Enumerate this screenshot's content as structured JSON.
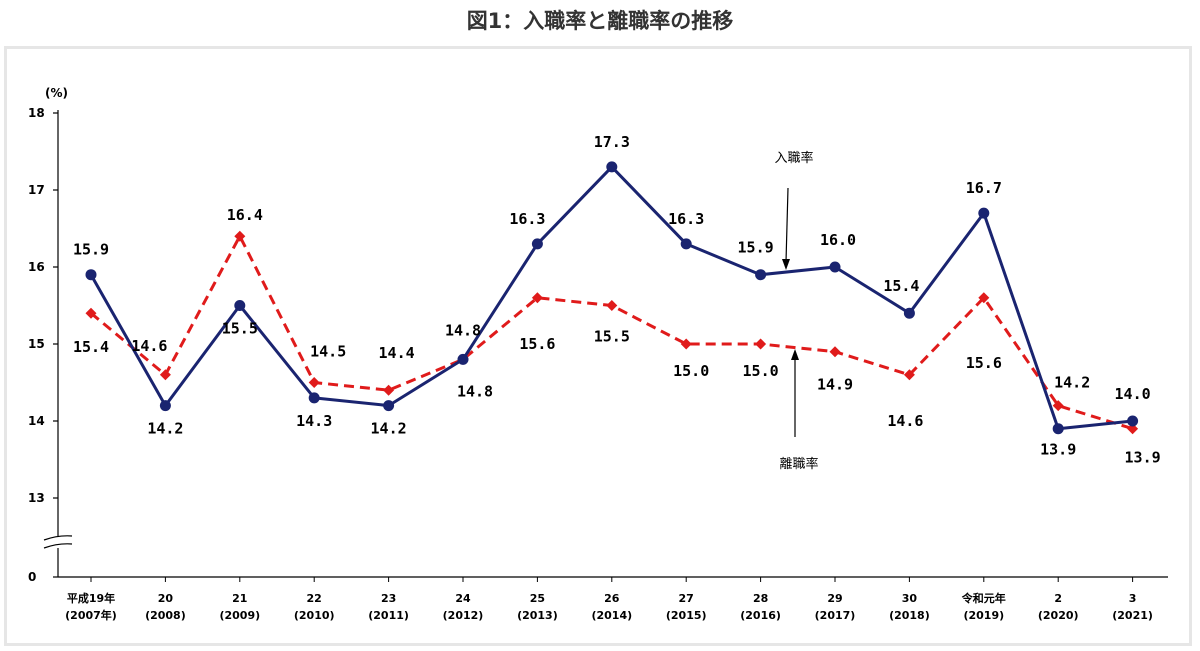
{
  "page_title": "図1：入職率と離職率の推移",
  "chart_data": {
    "type": "line",
    "title": "図1：入職率と離職率の推移",
    "ylabel": "(%)",
    "ylim": [
      13,
      18
    ],
    "y_ticks": [
      "18",
      "17",
      "16",
      "15",
      "14",
      "13",
      "0"
    ],
    "axis_break": true,
    "grid": false,
    "categories": [
      [
        "平成19年",
        "(2007年)"
      ],
      [
        "20",
        "(2008)"
      ],
      [
        "21",
        "(2009)"
      ],
      [
        "22",
        "(2010)"
      ],
      [
        "23",
        "(2011)"
      ],
      [
        "24",
        "(2012)"
      ],
      [
        "25",
        "(2013)"
      ],
      [
        "26",
        "(2014)"
      ],
      [
        "27",
        "(2015)"
      ],
      [
        "28",
        "(2016)"
      ],
      [
        "29",
        "(2017)"
      ],
      [
        "30",
        "(2018)"
      ],
      [
        "令和元年",
        "(2019)"
      ],
      [
        "2",
        "(2020)"
      ],
      [
        "3",
        "(2021)"
      ]
    ],
    "series": [
      {
        "name": "入職率",
        "color": "#1a2470",
        "line_style": "solid",
        "marker": "circle",
        "values": [
          15.9,
          14.2,
          15.5,
          14.3,
          14.2,
          14.8,
          16.3,
          17.3,
          16.3,
          15.9,
          16.0,
          15.4,
          16.7,
          13.9,
          14.0
        ],
        "labels": [
          "15.9",
          "14.2",
          "15.5",
          "14.3",
          "14.2",
          "14.8",
          "16.3",
          "17.3",
          "16.3",
          "15.9",
          "16.0",
          "15.4",
          "16.7",
          "13.9",
          "14.0"
        ]
      },
      {
        "name": "離職率",
        "color": "#e01b1b",
        "line_style": "dashed",
        "marker": "diamond",
        "values": [
          15.4,
          14.6,
          16.4,
          14.5,
          14.4,
          14.8,
          15.6,
          15.5,
          15.0,
          15.0,
          14.9,
          14.6,
          15.6,
          14.2,
          13.9
        ],
        "labels": [
          "15.4",
          "14.6",
          "16.4",
          "14.5",
          "14.4",
          "14.8",
          "15.6",
          "15.5",
          "15.0",
          "15.0",
          "14.9",
          "14.6",
          "15.6",
          "14.2",
          "13.9"
        ]
      }
    ],
    "annotations": [
      "入職率",
      "離職率"
    ]
  }
}
